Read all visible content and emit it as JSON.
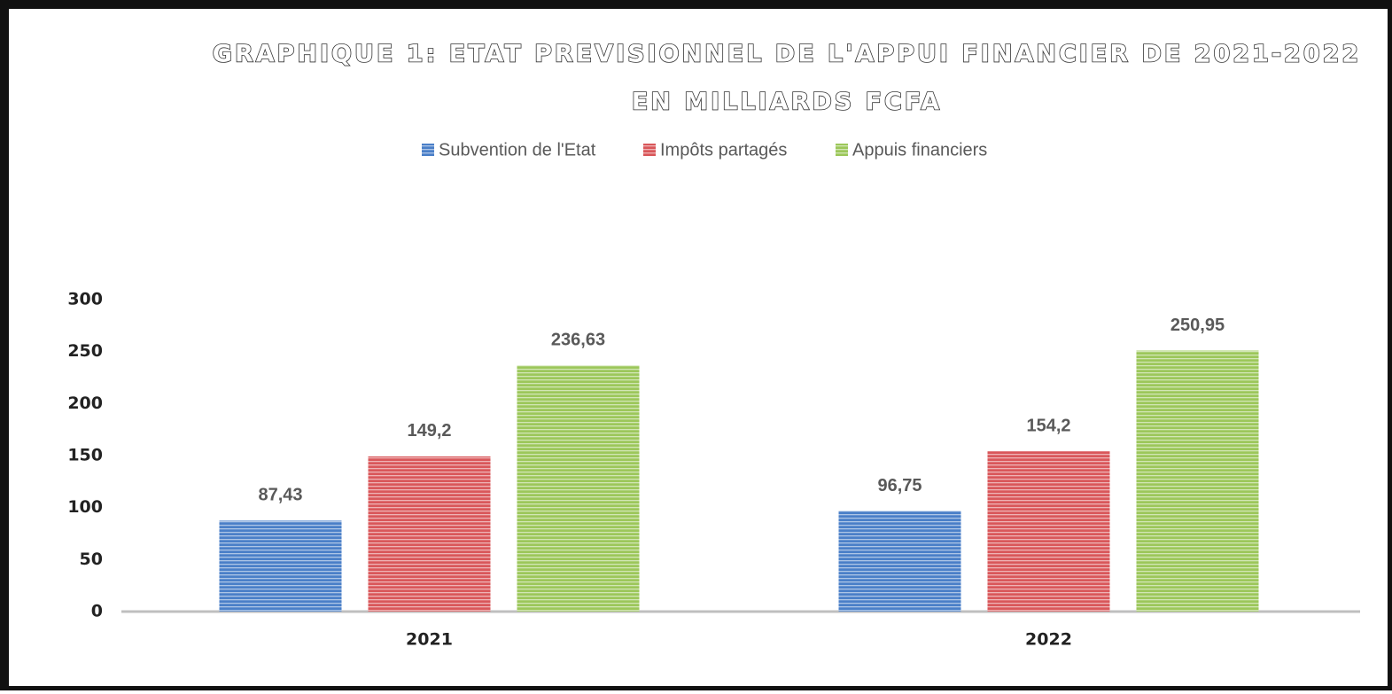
{
  "chart_data": {
    "type": "bar",
    "title": [
      "GRAPHIQUE 1: ETAT PREVISIONNEL DE L'APPUI FINANCIER DE 2021-2022",
      "EN MILLIARDS FCFA"
    ],
    "categories": [
      "2021",
      "2022"
    ],
    "series": [
      {
        "name": "Subvention de l'Etat",
        "color": "#4a7fc8",
        "values": [
          87.43,
          96.75
        ],
        "value_labels": [
          "87,43",
          "96,75"
        ]
      },
      {
        "name": "Impôts partagés",
        "color": "#d9575a",
        "values": [
          149.2,
          154.2
        ],
        "value_labels": [
          "149,2",
          "154,2"
        ]
      },
      {
        "name": "Appuis financiers",
        "color": "#9cc75a",
        "values": [
          236.63,
          250.95
        ],
        "value_labels": [
          "236,63",
          "250,95"
        ]
      }
    ],
    "ylim": [
      0,
      300
    ],
    "yticks": [
      0,
      50,
      100,
      150,
      200,
      250,
      300
    ],
    "grid": false,
    "legend": "top"
  }
}
